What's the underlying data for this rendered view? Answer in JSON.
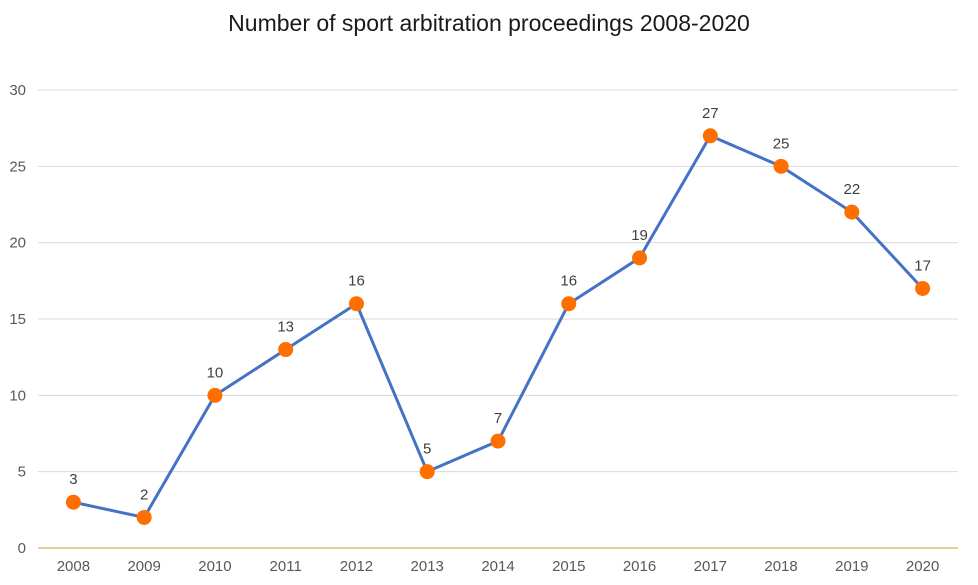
{
  "chart_data": {
    "type": "line",
    "title": "Number of sport arbitration proceedings 2008-2020",
    "xlabel": "",
    "ylabel": "",
    "categories": [
      "2008",
      "2009",
      "2010",
      "2011",
      "2012",
      "2013",
      "2014",
      "2015",
      "2016",
      "2017",
      "2018",
      "2019",
      "2020"
    ],
    "values": [
      3,
      2,
      10,
      13,
      16,
      5,
      7,
      16,
      19,
      27,
      25,
      22,
      17
    ],
    "ylim": [
      0,
      30
    ],
    "yticks": [
      0,
      5,
      10,
      15,
      20,
      25,
      30
    ],
    "grid": true,
    "legend": "none",
    "data_labels": true,
    "colors": {
      "line": "#4472C4",
      "marker": "#FF6F00",
      "grid": "#d9d9d9",
      "x_axis": "#C9A227"
    }
  }
}
